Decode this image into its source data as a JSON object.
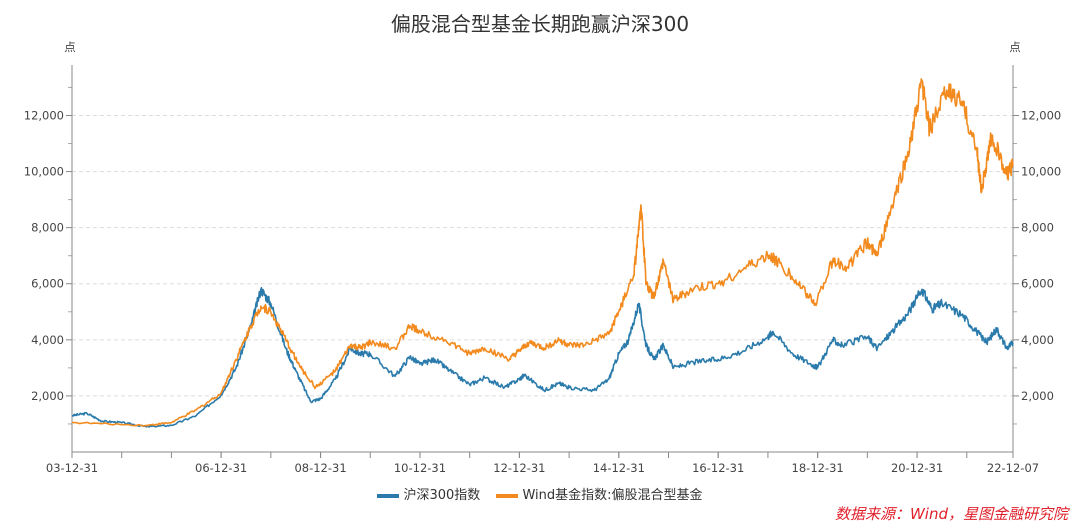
{
  "chart_data": {
    "type": "line",
    "title": "偏股混合型基金长期跑赢沪深300",
    "ylabel_left": "点",
    "ylabel_right": "点",
    "ylim": [
      0,
      13800
    ],
    "xlim": [
      2004.0,
      2022.93
    ],
    "yticks": [
      2000,
      4000,
      6000,
      8000,
      10000,
      12000
    ],
    "ytick_labels": [
      "2,000",
      "4,000",
      "6,000",
      "8,000",
      "10,000",
      "12,000"
    ],
    "xticks": [
      2004.0,
      2007.0,
      2009.0,
      2011.0,
      2013.0,
      2015.0,
      2017.0,
      2019.0,
      2021.0,
      2022.93
    ],
    "xtick_labels": [
      "03-12-31",
      "06-12-31",
      "08-12-31",
      "10-12-31",
      "12-12-31",
      "14-12-31",
      "16-12-31",
      "18-12-31",
      "20-12-31",
      "22-12-07"
    ],
    "grid": "horizontal dashed",
    "legend_position": "bottom",
    "series": [
      {
        "name": "沪深300指数",
        "color": "#2a7bab",
        "x": [
          2004.0,
          2004.3,
          2004.6,
          2005.0,
          2005.5,
          2006.0,
          2006.5,
          2007.0,
          2007.3,
          2007.6,
          2007.8,
          2008.0,
          2008.3,
          2008.5,
          2008.8,
          2009.0,
          2009.3,
          2009.6,
          2009.8,
          2010.0,
          2010.5,
          2010.8,
          2011.0,
          2011.3,
          2011.6,
          2012.0,
          2012.3,
          2012.7,
          2013.0,
          2013.1,
          2013.5,
          2013.8,
          2014.0,
          2014.5,
          2014.8,
          2015.0,
          2015.2,
          2015.4,
          2015.55,
          2015.7,
          2015.9,
          2016.1,
          2016.5,
          2017.0,
          2017.5,
          2018.0,
          2018.1,
          2018.5,
          2018.9,
          2019.0,
          2019.3,
          2019.5,
          2020.0,
          2020.2,
          2020.5,
          2020.8,
          2021.1,
          2021.3,
          2021.5,
          2021.9,
          2022.2,
          2022.4,
          2022.6,
          2022.8,
          2022.93
        ],
        "values": [
          1300,
          1380,
          1100,
          1050,
          900,
          950,
          1300,
          2040,
          3000,
          4500,
          5800,
          5300,
          3700,
          2900,
          1800,
          1900,
          2600,
          3700,
          3500,
          3500,
          2700,
          3400,
          3130,
          3300,
          2900,
          2400,
          2650,
          2300,
          2600,
          2750,
          2200,
          2450,
          2300,
          2200,
          2600,
          3500,
          4000,
          5300,
          3800,
          3300,
          3800,
          3000,
          3200,
          3300,
          3600,
          4100,
          4300,
          3500,
          3100,
          3000,
          4000,
          3800,
          4100,
          3700,
          4300,
          4900,
          5800,
          5100,
          5300,
          4900,
          4300,
          3900,
          4400,
          3700,
          3900
        ]
      },
      {
        "name": "Wind基金指数:偏股混合型基金",
        "color": "#f28a1e",
        "x": [
          2004.0,
          2005.5,
          2006.0,
          2006.5,
          2007.0,
          2007.3,
          2007.6,
          2007.8,
          2008.0,
          2008.3,
          2008.6,
          2008.9,
          2009.3,
          2009.6,
          2009.8,
          2010.0,
          2010.5,
          2010.8,
          2011.0,
          2011.5,
          2012.0,
          2012.3,
          2012.8,
          2013.0,
          2013.2,
          2013.5,
          2013.8,
          2014.0,
          2014.3,
          2014.8,
          2015.0,
          2015.3,
          2015.45,
          2015.55,
          2015.7,
          2015.9,
          2016.1,
          2016.5,
          2017.0,
          2017.5,
          2018.0,
          2018.2,
          2018.6,
          2018.95,
          2019.3,
          2019.6,
          2020.0,
          2020.2,
          2020.5,
          2020.8,
          2021.1,
          2021.25,
          2021.6,
          2021.9,
          2022.2,
          2022.3,
          2022.5,
          2022.8,
          2022.93
        ],
        "values": [
          1050,
          950,
          1050,
          1500,
          2100,
          3300,
          4500,
          5200,
          5000,
          4000,
          3000,
          2300,
          2900,
          3800,
          3700,
          3900,
          3700,
          4500,
          4300,
          4000,
          3500,
          3700,
          3300,
          3600,
          3900,
          3700,
          4000,
          3800,
          3800,
          4200,
          5000,
          6300,
          8700,
          6000,
          5500,
          6800,
          5400,
          5800,
          6000,
          6500,
          7000,
          6800,
          6000,
          5300,
          6800,
          6600,
          7500,
          7000,
          8800,
          10500,
          13200,
          11500,
          12900,
          12500,
          10800,
          9300,
          11300,
          9900,
          10200
        ]
      }
    ]
  },
  "source": "数据来源：Wind，星图金融研究院"
}
